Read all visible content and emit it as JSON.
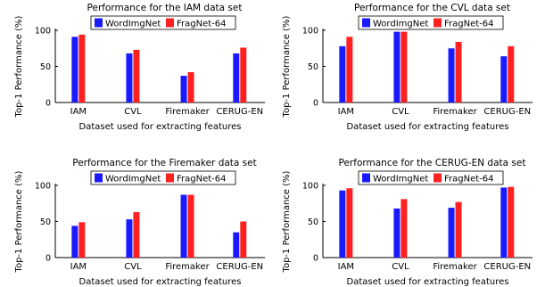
{
  "chart_data": [
    {
      "type": "bar",
      "title": "Performance for the IAM data set",
      "xlabel": "Dataset used for extracting features",
      "ylabel": "Top-1 Performance (%)",
      "categories": [
        "IAM",
        "CVL",
        "Firemaker",
        "CERUG-EN"
      ],
      "yticks": [
        "0",
        "50",
        "100"
      ],
      "ylim": [
        0,
        100
      ],
      "legend_position": "top",
      "grid": false,
      "series": [
        {
          "name": "WordImgNet",
          "color": "#1a1aff",
          "values": [
            91,
            68,
            37,
            68
          ]
        },
        {
          "name": "FragNet-64",
          "color": "#ff2020",
          "values": [
            94,
            73,
            42,
            76
          ]
        }
      ]
    },
    {
      "type": "bar",
      "title": "Performance for the CVL data set",
      "xlabel": "Dataset used for extracting features",
      "ylabel": "Top-1 Performance (%)",
      "categories": [
        "IAM",
        "CVL",
        "Firemaker",
        "CERUG-EN"
      ],
      "yticks": [
        "0",
        "50",
        "100"
      ],
      "ylim": [
        0,
        100
      ],
      "legend_position": "top",
      "grid": false,
      "series": [
        {
          "name": "WordImgNet",
          "color": "#1a1aff",
          "values": [
            78,
            98,
            75,
            64
          ]
        },
        {
          "name": "FragNet-64",
          "color": "#ff2020",
          "values": [
            91,
            98,
            84,
            78
          ]
        }
      ]
    },
    {
      "type": "bar",
      "title": "Performance for the Firemaker data set",
      "xlabel": "Dataset used for extracting features",
      "ylabel": "Top-1 Performance (%)",
      "categories": [
        "IAM",
        "CVL",
        "Firemaker",
        "CERUG-EN"
      ],
      "yticks": [
        "0",
        "50",
        "100"
      ],
      "ylim": [
        0,
        100
      ],
      "legend_position": "top",
      "grid": false,
      "series": [
        {
          "name": "WordImgNet",
          "color": "#1a1aff",
          "values": [
            44,
            53,
            87,
            35
          ]
        },
        {
          "name": "FragNet-64",
          "color": "#ff2020",
          "values": [
            49,
            63,
            87,
            50
          ]
        }
      ]
    },
    {
      "type": "bar",
      "title": "Performance for the CERUG-EN data set",
      "xlabel": "Dataset used for extracting features",
      "ylabel": "Top-1 Performance (%)",
      "categories": [
        "IAM",
        "CVL",
        "Firemaker",
        "CERUG-EN"
      ],
      "yticks": [
        "0",
        "50",
        "100"
      ],
      "ylim": [
        0,
        100
      ],
      "legend_position": "top",
      "grid": false,
      "series": [
        {
          "name": "WordImgNet",
          "color": "#1a1aff",
          "values": [
            93,
            68,
            69,
            97
          ]
        },
        {
          "name": "FragNet-64",
          "color": "#ff2020",
          "values": [
            96,
            81,
            77,
            98
          ]
        }
      ]
    }
  ]
}
